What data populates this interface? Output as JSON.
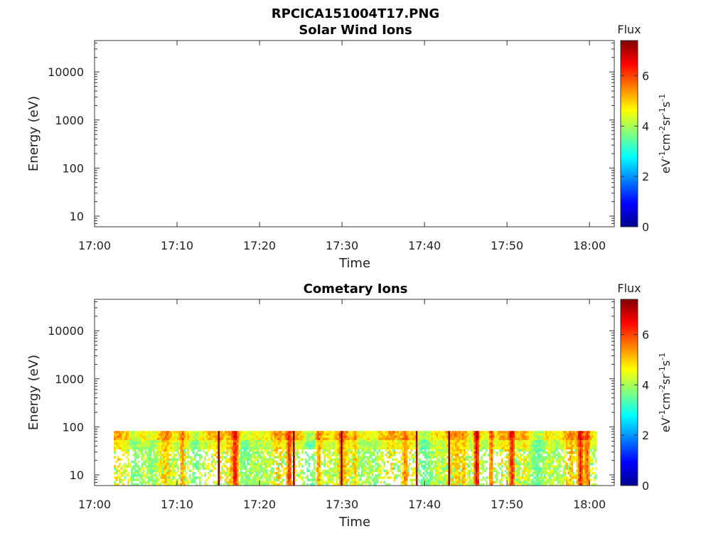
{
  "figure_title": "RPCICA151004T17.PNG",
  "chart_data": [
    {
      "type": "heatmap",
      "title": "Solar Wind Ions",
      "xlabel": "Time",
      "ylabel": "Energy (eV)",
      "y_scale": "log",
      "ylim": [
        6,
        45000
      ],
      "xlim": [
        "17:00",
        "18:03"
      ],
      "x_ticks": [
        "17:00",
        "17:10",
        "17:20",
        "17:30",
        "17:40",
        "17:50",
        "18:00"
      ],
      "y_ticks": [
        "10",
        "100",
        "1000",
        "10000"
      ],
      "y_tick_values": [
        10,
        100,
        1000,
        10000
      ],
      "data_present": false,
      "colorbar": {
        "title": "Flux",
        "label_base": "eV",
        "label_parts": [
          "-1",
          "cm",
          "-2",
          "sr",
          "-1",
          "s",
          "-1"
        ],
        "ticks": [
          "0",
          "2",
          "4",
          "6"
        ],
        "tick_values": [
          0,
          2,
          4,
          6
        ],
        "range": [
          0,
          7.4
        ],
        "colormap": "jet"
      }
    },
    {
      "type": "heatmap",
      "title": "Cometary Ions",
      "xlabel": "Time",
      "ylabel": "Energy (eV)",
      "y_scale": "log",
      "ylim": [
        6,
        45000
      ],
      "xlim": [
        "17:00",
        "18:03"
      ],
      "x_ticks": [
        "17:00",
        "17:10",
        "17:20",
        "17:30",
        "17:40",
        "17:50",
        "18:00"
      ],
      "y_ticks": [
        "10",
        "100",
        "1000",
        "10000"
      ],
      "y_tick_values": [
        10,
        100,
        1000,
        10000
      ],
      "data_present": true,
      "data_time_range": [
        "17:02:20",
        "18:00:40"
      ],
      "data_energy_range": [
        6,
        82
      ],
      "colorbar": {
        "title": "Flux",
        "label_base": "eV",
        "label_parts": [
          "-1",
          "cm",
          "-2",
          "sr",
          "-1",
          "s",
          "-1"
        ],
        "ticks": [
          "0",
          "2",
          "4",
          "6"
        ],
        "tick_values": [
          0,
          2,
          4,
          6
        ],
        "range": [
          0,
          7.4
        ],
        "colormap": "jet"
      }
    }
  ]
}
